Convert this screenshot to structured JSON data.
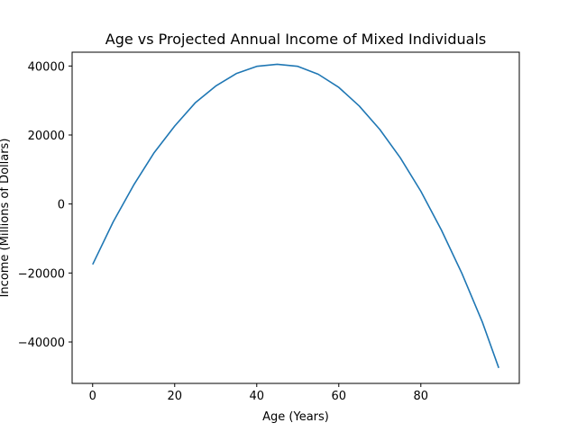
{
  "chart_data": {
    "type": "line",
    "title": "Age vs Projected Annual Income of Mixed Individuals",
    "xlabel": "Age (Years)",
    "ylabel": "Income (Millions of Dollars)",
    "xlim": [
      -5,
      104
    ],
    "ylim": [
      -52000,
      44000
    ],
    "grid": false,
    "legend": "none",
    "x_ticks": [
      0,
      20,
      40,
      60,
      80
    ],
    "x_tick_labels": [
      "0",
      "20",
      "40",
      "60",
      "80"
    ],
    "y_ticks": [
      -40000,
      -20000,
      0,
      20000,
      40000
    ],
    "y_tick_labels": [
      "−40000",
      "−20000",
      "0",
      "20000",
      "40000"
    ],
    "line_color": "#1f77b4",
    "series": [
      {
        "x": [
          0,
          5,
          10,
          15,
          20,
          25,
          30,
          35,
          40,
          45,
          50,
          55,
          60,
          65,
          70,
          75,
          80,
          85,
          90,
          95,
          99
        ],
        "values": [
          -17500,
          -5200,
          5500,
          14900,
          22600,
          29300,
          34200,
          37800,
          39900,
          40500,
          39900,
          37600,
          33800,
          28400,
          21600,
          13400,
          3700,
          -7500,
          -20100,
          -34200,
          -47500
        ]
      }
    ]
  }
}
